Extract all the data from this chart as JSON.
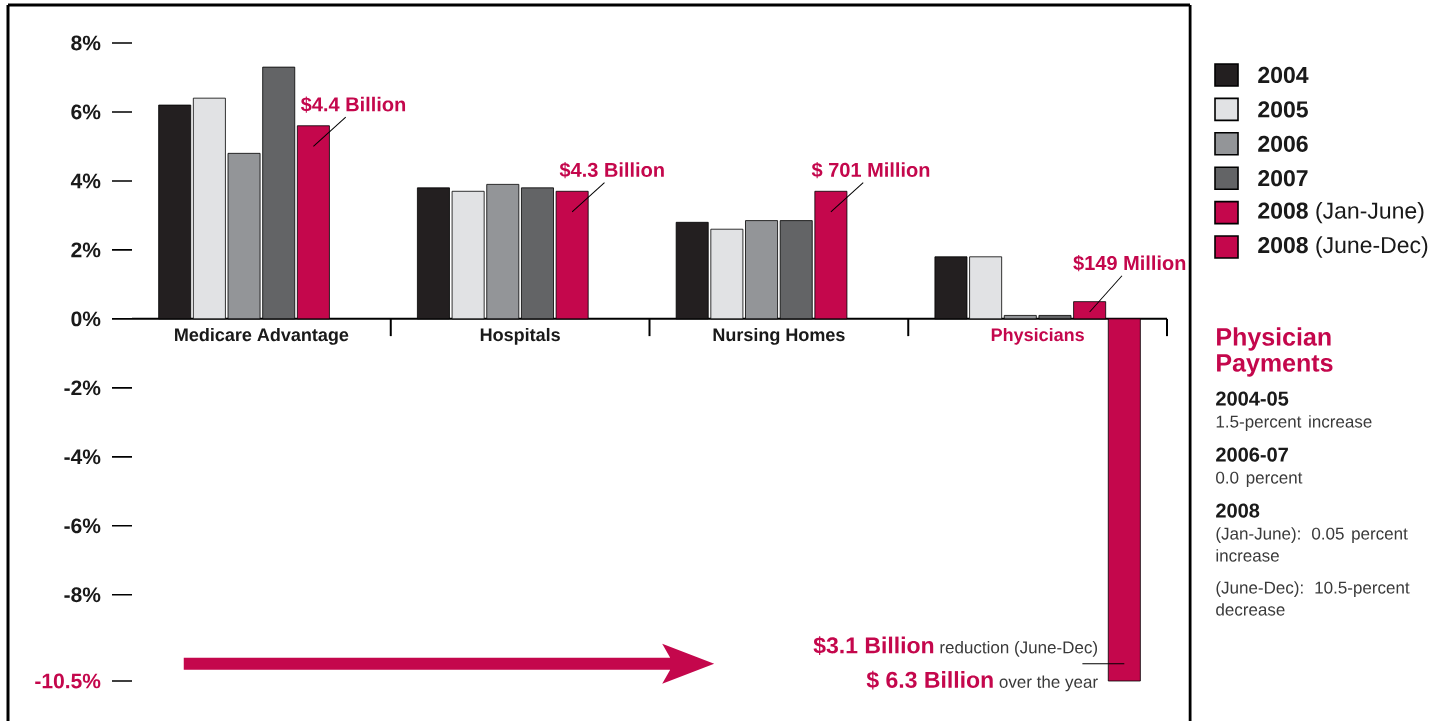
{
  "chart_data": {
    "type": "bar",
    "categories": [
      "Medicare Advantage",
      "Hospitals",
      "Nursing Homes",
      "Physicians"
    ],
    "series": [
      {
        "name": "2004",
        "color": "#231f20",
        "values": [
          6.2,
          3.8,
          2.8,
          1.8
        ]
      },
      {
        "name": "2005",
        "color": "#e1e2e4",
        "values": [
          6.4,
          3.7,
          2.6,
          1.8
        ]
      },
      {
        "name": "2006",
        "color": "#939598",
        "values": [
          4.8,
          3.9,
          2.85,
          0.1
        ]
      },
      {
        "name": "2007",
        "color": "#636466",
        "values": [
          7.3,
          3.8,
          2.85,
          0.1
        ]
      },
      {
        "name": "**2008** (Jan-June)",
        "color": "#c4074c",
        "values": [
          5.6,
          3.7,
          3.7,
          0.5
        ]
      },
      {
        "name": "**2008** (June-Dec)",
        "color": "#c4074c",
        "values": [
          null,
          null,
          null,
          -10.5
        ]
      }
    ],
    "ylim": [
      -10.5,
      8
    ],
    "yticks": [
      {
        "value": 8,
        "label": "8%"
      },
      {
        "value": 6,
        "label": "6%"
      },
      {
        "value": 4,
        "label": "4%"
      },
      {
        "value": 2,
        "label": "2%"
      },
      {
        "value": 0,
        "label": "0%"
      },
      {
        "value": -2,
        "label": "-2%"
      },
      {
        "value": -4,
        "label": "-4%"
      },
      {
        "value": -6,
        "label": "-6%"
      },
      {
        "value": -8,
        "label": "-8%"
      },
      {
        "value": -10.5,
        "label": "-10.5%"
      }
    ],
    "legend": "right",
    "annotations": [
      "$4.4 Billion",
      "$4.3 Billion",
      "$ 701 Million",
      "$149 Million",
      "**$3.1 Billion** reduction (June-Dec)",
      "**$ 6.3 Billion** over the year",
      "Physician Payments",
      "2004-05",
      "1.5-percent increase",
      "2006-07",
      "0.0 percent",
      "2008",
      "(Jan-June): 0.05 percent increase",
      "(June-Dec): 10.5-percent decrease"
    ]
  }
}
